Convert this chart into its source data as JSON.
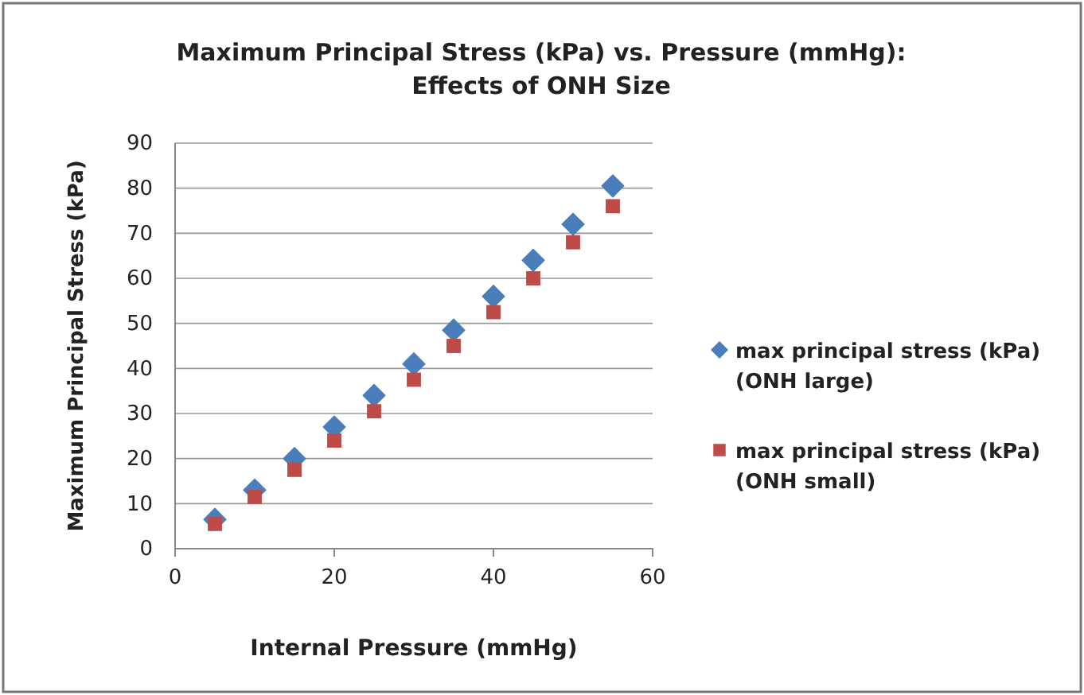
{
  "chart_data": {
    "type": "scatter",
    "title": "Maximum Principal Stress (kPa) vs. Pressure (mmHg):\nEffects of ONH Size",
    "xlabel": "Internal Pressure (mmHg)",
    "ylabel": "Maximum Principal Stress (kPa)",
    "x": [
      5,
      10,
      15,
      20,
      25,
      30,
      35,
      40,
      45,
      50,
      55
    ],
    "series": [
      {
        "name": "max principal stress (kPa) (ONH large)",
        "color": "#4a7ebb",
        "marker": "diamond",
        "values": [
          6.5,
          13,
          20,
          27,
          34,
          41,
          48.5,
          56,
          64,
          72,
          80.5
        ]
      },
      {
        "name": "max principal stress (kPa) (ONH small)",
        "color": "#be4b48",
        "marker": "square",
        "values": [
          5.5,
          11.5,
          17.5,
          24,
          30.5,
          37.5,
          45,
          52.5,
          60,
          68,
          76
        ]
      }
    ],
    "xlim": [
      0,
      60
    ],
    "xticks": [
      0,
      20,
      40,
      60
    ],
    "ylim": [
      0,
      90
    ],
    "yticks": [
      0,
      10,
      20,
      30,
      40,
      50,
      60,
      70,
      80,
      90
    ],
    "grid": "y",
    "legend": "right"
  }
}
